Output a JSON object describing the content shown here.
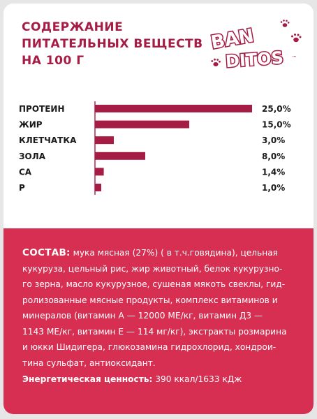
{
  "header": {
    "title_lines": [
      "СОДЕРЖАНИЕ",
      "ПИТАТЕЛЬНЫХ ВЕЩЕСТВ",
      "НА 100 Г"
    ]
  },
  "logo": {
    "line1": "BAN",
    "line2": "DITOS",
    "tm": "™",
    "color": "#a51c45",
    "icon": "paw-print-icon"
  },
  "chart_data": {
    "type": "bar",
    "orientation": "horizontal",
    "categories": [
      "ПРОТЕИН",
      "ЖИР",
      "КЛЕТЧАТКА",
      "ЗОЛА",
      "CA",
      "P"
    ],
    "values": [
      25.0,
      15.0,
      3.0,
      8.0,
      1.4,
      1.0
    ],
    "value_labels": [
      "25,0%",
      "15,0%",
      "3,0%",
      "8,0%",
      "1,4%",
      "1,0%"
    ],
    "xlim": [
      0,
      25
    ],
    "bar_color": "#a51c45",
    "axis": "left",
    "grid": false
  },
  "composition": {
    "label": "СОСТАВ:",
    "lines": [
      " мука мясная (27%) ( в т.ч.говядина), цельная",
      "кукуруза, цельный рис, жир животный, белок кукурузно-",
      "го зерна, масло кукурузное, сушеная мякоть свеклы, гид-",
      "ролизованные мясные продукты, комплекс витаминов и",
      "минералов (витамин А — 12000 МЕ/кг, витамин Д3 —",
      "1143 МЕ/кг, витамин Е — 114 мг/кг), экстракты розмарина",
      "и юкки Шидигера, глюкозамина гидрохлорид, хондрои-",
      "тина сульфат, антиоксидант."
    ]
  },
  "energy": {
    "label": "Энергетическая ценность:",
    "value": " 390 ккал/1633 кДж"
  },
  "colors": {
    "accent": "#a51c45",
    "panel": "#d62f52",
    "background": "#e7e6e6"
  }
}
